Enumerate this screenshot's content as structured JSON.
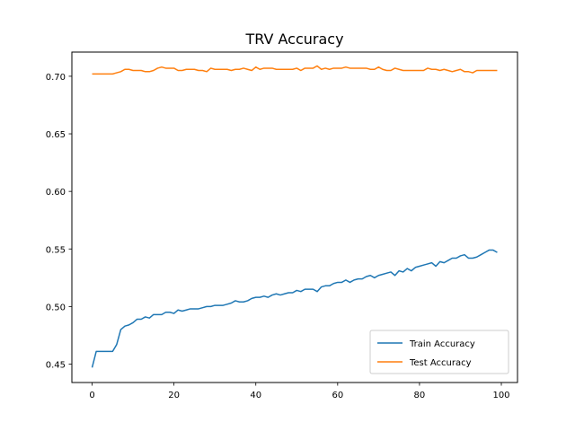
{
  "chart_data": {
    "type": "line",
    "title": "TRV Accuracy",
    "xlabel": "",
    "ylabel": "",
    "xlim": [
      -4.95,
      103.95
    ],
    "ylim": [
      0.434,
      0.721
    ],
    "xticks": [
      0,
      20,
      40,
      60,
      80,
      100
    ],
    "yticks": [
      0.45,
      0.5,
      0.55,
      0.6,
      0.65,
      0.7
    ],
    "ytick_labels": [
      "0.45",
      "0.50",
      "0.55",
      "0.60",
      "0.65",
      "0.70"
    ],
    "legend": "lower-right",
    "grid": false,
    "x": [
      0,
      1,
      2,
      3,
      4,
      5,
      6,
      7,
      8,
      9,
      10,
      11,
      12,
      13,
      14,
      15,
      16,
      17,
      18,
      19,
      20,
      21,
      22,
      23,
      24,
      25,
      26,
      27,
      28,
      29,
      30,
      31,
      32,
      33,
      34,
      35,
      36,
      37,
      38,
      39,
      40,
      41,
      42,
      43,
      44,
      45,
      46,
      47,
      48,
      49,
      50,
      51,
      52,
      53,
      54,
      55,
      56,
      57,
      58,
      59,
      60,
      61,
      62,
      63,
      64,
      65,
      66,
      67,
      68,
      69,
      70,
      71,
      72,
      73,
      74,
      75,
      76,
      77,
      78,
      79,
      80,
      81,
      82,
      83,
      84,
      85,
      86,
      87,
      88,
      89,
      90,
      91,
      92,
      93,
      94,
      95,
      96,
      97,
      98,
      99
    ],
    "series": [
      {
        "name": "Train Accuracy",
        "color": "#1f77b4",
        "values": [
          0.447,
          0.461,
          0.461,
          0.461,
          0.461,
          0.461,
          0.467,
          0.48,
          0.483,
          0.484,
          0.486,
          0.489,
          0.489,
          0.491,
          0.49,
          0.493,
          0.493,
          0.493,
          0.495,
          0.495,
          0.494,
          0.497,
          0.496,
          0.497,
          0.498,
          0.498,
          0.498,
          0.499,
          0.5,
          0.5,
          0.501,
          0.501,
          0.501,
          0.502,
          0.503,
          0.505,
          0.504,
          0.504,
          0.505,
          0.507,
          0.508,
          0.508,
          0.509,
          0.508,
          0.51,
          0.511,
          0.51,
          0.511,
          0.512,
          0.512,
          0.514,
          0.513,
          0.515,
          0.515,
          0.515,
          0.513,
          0.517,
          0.518,
          0.518,
          0.52,
          0.521,
          0.521,
          0.523,
          0.521,
          0.523,
          0.524,
          0.524,
          0.526,
          0.527,
          0.525,
          0.527,
          0.528,
          0.529,
          0.53,
          0.527,
          0.531,
          0.53,
          0.533,
          0.531,
          0.534,
          0.535,
          0.536,
          0.537,
          0.538,
          0.535,
          0.539,
          0.538,
          0.54,
          0.542,
          0.542,
          0.544,
          0.545,
          0.542,
          0.542,
          0.543,
          0.545,
          0.547,
          0.549,
          0.549,
          0.547
        ]
      },
      {
        "name": "Test Accuracy",
        "color": "#ff7f0e",
        "values": [
          0.702,
          0.702,
          0.702,
          0.702,
          0.702,
          0.702,
          0.703,
          0.704,
          0.706,
          0.706,
          0.705,
          0.705,
          0.705,
          0.704,
          0.704,
          0.705,
          0.707,
          0.708,
          0.707,
          0.707,
          0.707,
          0.705,
          0.705,
          0.706,
          0.706,
          0.706,
          0.705,
          0.705,
          0.704,
          0.707,
          0.706,
          0.706,
          0.706,
          0.706,
          0.705,
          0.706,
          0.706,
          0.707,
          0.706,
          0.705,
          0.708,
          0.706,
          0.707,
          0.707,
          0.707,
          0.706,
          0.706,
          0.706,
          0.706,
          0.706,
          0.707,
          0.705,
          0.707,
          0.707,
          0.707,
          0.709,
          0.706,
          0.707,
          0.706,
          0.707,
          0.707,
          0.707,
          0.708,
          0.707,
          0.707,
          0.707,
          0.707,
          0.707,
          0.706,
          0.706,
          0.708,
          0.706,
          0.705,
          0.705,
          0.707,
          0.706,
          0.705,
          0.705,
          0.705,
          0.705,
          0.705,
          0.705,
          0.707,
          0.706,
          0.706,
          0.705,
          0.706,
          0.705,
          0.704,
          0.705,
          0.706,
          0.704,
          0.704,
          0.703,
          0.705,
          0.705,
          0.705,
          0.705,
          0.705,
          0.705
        ]
      }
    ]
  }
}
